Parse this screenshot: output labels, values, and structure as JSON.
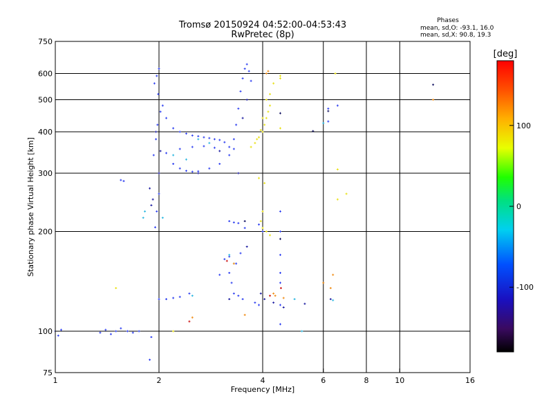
{
  "chart_data": {
    "type": "scatter",
    "title": "Tromsø 20150924 04:52:00-04:53:43",
    "subtitle": "RwPretec (8p)",
    "xlabel": "Frequency [MHz]",
    "ylabel": "Stationary phase Virtual Height [km]",
    "xscale": "log2",
    "yscale": "log",
    "xlim": [
      1,
      16
    ],
    "ylim": [
      75,
      750
    ],
    "x_ticks": [
      1,
      2,
      4,
      6,
      8,
      10,
      16
    ],
    "y_ticks": [
      75,
      100,
      200,
      300,
      400,
      500,
      600,
      750
    ],
    "x_gridlines": [
      2,
      4,
      6,
      8,
      10
    ],
    "y_gridlines": [
      100,
      200,
      300,
      400,
      500,
      600
    ],
    "stats": {
      "header": "Phases",
      "line1": "mean, sd,O: -93.1, 16.0",
      "line2": "mean, sd,X:  90.8, 19.3"
    },
    "colorbar": {
      "label": "[deg]",
      "range": [
        -180,
        180
      ],
      "ticks": [
        -100,
        0,
        100
      ]
    },
    "series": [
      {
        "color": "#2a3cf0",
        "points": [
          [
            1.0,
            100
          ],
          [
            1.02,
            97
          ],
          [
            1.04,
            101
          ],
          [
            1.35,
            99
          ],
          [
            1.4,
            101
          ],
          [
            1.45,
            98
          ],
          [
            1.5,
            100
          ],
          [
            1.55,
            102
          ],
          [
            1.62,
            100
          ],
          [
            1.68,
            99
          ],
          [
            1.75,
            100
          ],
          [
            1.55,
            286
          ],
          [
            1.58,
            284
          ],
          [
            1.95,
            206
          ],
          [
            1.97,
            230
          ],
          [
            2.0,
            260
          ],
          [
            1.93,
            340
          ],
          [
            1.96,
            380
          ],
          [
            1.98,
            420
          ],
          [
            2.02,
            460
          ],
          [
            1.99,
            520
          ],
          [
            1.94,
            560
          ],
          [
            2.0,
            620
          ],
          [
            1.97,
            590
          ],
          [
            2.05,
            480
          ],
          [
            2.1,
            440
          ],
          [
            2.2,
            410
          ],
          [
            2.3,
            400
          ],
          [
            2.4,
            395
          ],
          [
            2.5,
            390
          ],
          [
            2.6,
            388
          ],
          [
            2.7,
            385
          ],
          [
            2.8,
            383
          ],
          [
            2.9,
            380
          ],
          [
            3.0,
            378
          ],
          [
            3.1,
            372
          ],
          [
            3.2,
            360
          ],
          [
            3.3,
            380
          ],
          [
            3.35,
            420
          ],
          [
            3.4,
            470
          ],
          [
            3.45,
            530
          ],
          [
            3.5,
            580
          ],
          [
            3.55,
            620
          ],
          [
            3.6,
            640
          ],
          [
            3.65,
            610
          ],
          [
            3.7,
            570
          ],
          [
            2.2,
            320
          ],
          [
            2.3,
            310
          ],
          [
            2.4,
            305
          ],
          [
            2.5,
            303
          ],
          [
            2.6,
            304
          ],
          [
            2.8,
            310
          ],
          [
            3.0,
            320
          ],
          [
            3.2,
            340
          ],
          [
            3.3,
            355
          ],
          [
            2.1,
            345
          ],
          [
            2.3,
            355
          ],
          [
            2.5,
            360
          ],
          [
            2.7,
            362
          ],
          [
            2.9,
            358
          ],
          [
            2.0,
            125
          ],
          [
            2.1,
            125
          ],
          [
            2.2,
            126
          ],
          [
            2.3,
            127
          ],
          [
            2.45,
            130
          ],
          [
            3.2,
            215
          ],
          [
            3.3,
            213
          ],
          [
            3.4,
            212
          ],
          [
            3.55,
            205
          ],
          [
            3.9,
            210
          ],
          [
            4.0,
            200
          ],
          [
            3.1,
            165
          ],
          [
            3.2,
            168
          ],
          [
            3.35,
            160
          ],
          [
            3.45,
            172
          ],
          [
            3.2,
            150
          ],
          [
            3.25,
            140
          ],
          [
            3.3,
            130
          ],
          [
            3.4,
            128
          ],
          [
            3.5,
            125
          ],
          [
            3.8,
            122
          ],
          [
            3.9,
            120
          ],
          [
            3.0,
            148
          ],
          [
            4.5,
            230
          ],
          [
            4.5,
            200
          ],
          [
            4.5,
            170
          ],
          [
            4.5,
            150
          ],
          [
            4.5,
            140
          ],
          [
            4.5,
            120
          ],
          [
            4.5,
            105
          ],
          [
            6.2,
            470
          ],
          [
            6.6,
            480
          ],
          [
            6.2,
            430
          ],
          [
            1.88,
            82
          ],
          [
            1.9,
            96
          ]
        ]
      },
      {
        "color": "#1a1aa0",
        "points": [
          [
            1.9,
            240
          ],
          [
            1.92,
            250
          ],
          [
            1.88,
            270
          ],
          [
            2.0,
            300
          ],
          [
            2.02,
            350
          ],
          [
            1.96,
            400
          ],
          [
            3.5,
            440
          ],
          [
            3.6,
            500
          ],
          [
            3.4,
            300
          ],
          [
            2.6,
            300
          ],
          [
            3.0,
            350
          ],
          [
            3.6,
            180
          ],
          [
            3.2,
            125
          ],
          [
            3.95,
            130
          ],
          [
            4.05,
            125
          ],
          [
            4.3,
            122
          ],
          [
            4.6,
            118
          ],
          [
            5.3,
            121
          ],
          [
            6.3,
            125
          ]
        ]
      },
      {
        "color": "#27b6e0",
        "points": [
          [
            2.6,
            380
          ],
          [
            2.8,
            370
          ],
          [
            2.4,
            330
          ],
          [
            2.2,
            340
          ],
          [
            1.8,
            220
          ],
          [
            2.5,
            128
          ],
          [
            2.05,
            220
          ],
          [
            3.2,
            170
          ],
          [
            3.3,
            160
          ],
          [
            5.2,
            100
          ],
          [
            6.0,
            425
          ],
          [
            6.4,
            124
          ],
          [
            1.82,
            230
          ],
          [
            4.95,
            125
          ]
        ]
      },
      {
        "color": "#e8e010",
        "points": [
          [
            3.7,
            360
          ],
          [
            3.8,
            370
          ],
          [
            3.9,
            385
          ],
          [
            4.0,
            400
          ],
          [
            4.05,
            420
          ],
          [
            4.1,
            440
          ],
          [
            4.15,
            460
          ],
          [
            4.2,
            480
          ],
          [
            4.0,
            440
          ],
          [
            3.95,
            405
          ],
          [
            3.85,
            380
          ],
          [
            4.1,
            500
          ],
          [
            4.2,
            520
          ],
          [
            4.5,
            410
          ],
          [
            4.5,
            580
          ],
          [
            4.3,
            560
          ],
          [
            4.0,
            230
          ],
          [
            3.9,
            290
          ],
          [
            4.05,
            280
          ],
          [
            4.1,
            200
          ],
          [
            4.2,
            195
          ],
          [
            3.95,
            215
          ],
          [
            4.0,
            205
          ],
          [
            6.6,
            250
          ],
          [
            7.0,
            260
          ],
          [
            6.5,
            600
          ],
          [
            6.6,
            308
          ],
          [
            4.5,
            590
          ],
          [
            1.5,
            135
          ],
          [
            2.2,
            100
          ]
        ]
      },
      {
        "color": "#f08a10",
        "points": [
          [
            4.3,
            130
          ],
          [
            4.35,
            128
          ],
          [
            4.6,
            126
          ],
          [
            6.0,
            140
          ],
          [
            6.4,
            148
          ],
          [
            4.1,
            600
          ],
          [
            2.5,
            110
          ],
          [
            3.55,
            112
          ],
          [
            3.3,
            160
          ],
          [
            6.3,
            135
          ],
          [
            4.15,
            610
          ],
          [
            12.5,
            500
          ]
        ]
      },
      {
        "color": "#cc1010",
        "points": [
          [
            2.45,
            107
          ],
          [
            4.52,
            135
          ],
          [
            4.2,
            128
          ],
          [
            3.15,
            163
          ]
        ]
      },
      {
        "color": "#101060",
        "points": [
          [
            12.5,
            555
          ],
          [
            4.5,
            455
          ],
          [
            5.6,
            402
          ],
          [
            6.2,
            462
          ],
          [
            4.5,
            190
          ],
          [
            3.55,
            215
          ]
        ]
      }
    ]
  }
}
